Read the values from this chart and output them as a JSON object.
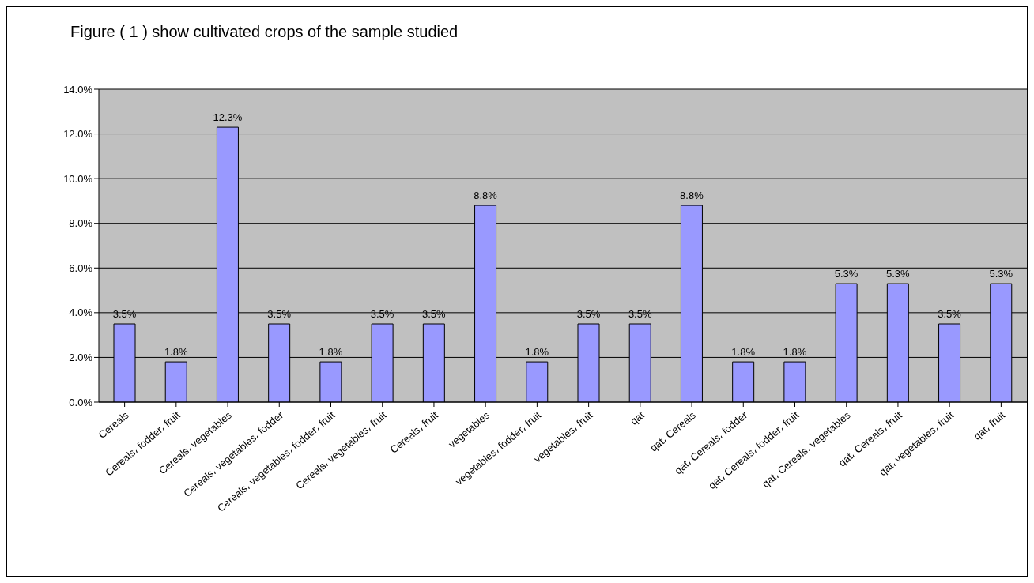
{
  "chart_data": {
    "type": "bar",
    "title": "Figure ( 1 ) show cultivated crops of the sample studied",
    "categories": [
      "Cereals",
      "Cereals، fodder، fruit",
      "Cereals، vegetables",
      "Cereals، vegetables، fodder",
      "Cereals، vegetables، fodder، fruit",
      "Cereals، vegetables، fruit",
      "Cereals، fruit",
      "vegetables",
      "vegetables، fodder، fruit",
      "vegetables، fruit",
      "qat",
      "qat، Cereals",
      "qat، Cereals، fodder",
      "qat، Cereals، fodder، fruit",
      "qat، Cereals، vegetables",
      "qat، Cereals، fruit",
      "qat، vegetables، fruit",
      "qat، fruit"
    ],
    "values": [
      3.5,
      1.8,
      12.3,
      3.5,
      1.8,
      3.5,
      3.5,
      8.8,
      1.8,
      3.5,
      3.5,
      8.8,
      1.8,
      1.8,
      5.3,
      5.3,
      3.5,
      5.3
    ],
    "value_labels": [
      "3.5%",
      "1.8%",
      "12.3%",
      "3.5%",
      "1.8%",
      "3.5%",
      "3.5%",
      "8.8%",
      "1.8%",
      "3.5%",
      "3.5%",
      "8.8%",
      "1.8%",
      "1.8%",
      "5.3%",
      "5.3%",
      "3.5%",
      "5.3%"
    ],
    "color": "#9999ff",
    "ylim": [
      0,
      14
    ],
    "yticks": [
      {
        "value": 0,
        "label": "0.0%"
      },
      {
        "value": 2,
        "label": "2.0%"
      },
      {
        "value": 4,
        "label": "4.0%"
      },
      {
        "value": 6,
        "label": "6.0%"
      },
      {
        "value": 8,
        "label": "8.0%"
      },
      {
        "value": 10,
        "label": "10.0%"
      },
      {
        "value": 12,
        "label": "12.0%"
      },
      {
        "value": 14,
        "label": "14.0%"
      }
    ],
    "grid": "y",
    "legend": false
  }
}
